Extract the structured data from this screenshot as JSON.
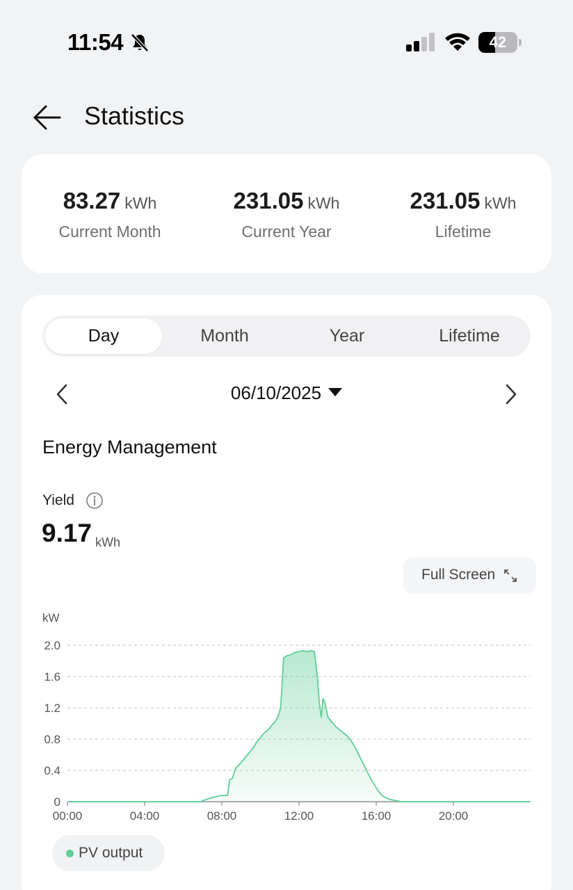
{
  "status_bar": {
    "time": "11:54",
    "battery": "42",
    "battery_level": 0.42,
    "icons": [
      "bell-slash-icon",
      "cellular-signal-icon",
      "wifi-icon",
      "battery-icon"
    ]
  },
  "header": {
    "title": "Statistics",
    "back_icon": "arrow-left-icon"
  },
  "summary": [
    {
      "value": "83.27",
      "unit": "kWh",
      "label": "Current Month"
    },
    {
      "value": "231.05",
      "unit": "kWh",
      "label": "Current Year"
    },
    {
      "value": "231.05",
      "unit": "kWh",
      "label": "Lifetime"
    }
  ],
  "tabs": [
    {
      "label": "Day",
      "active": true
    },
    {
      "label": "Month",
      "active": false
    },
    {
      "label": "Year",
      "active": false
    },
    {
      "label": "Lifetime",
      "active": false
    }
  ],
  "date_nav": {
    "date": "06/10/2025",
    "prev_icon": "chevron-left-icon",
    "next_icon": "chevron-right-icon",
    "caret_icon": "caret-down-icon"
  },
  "energy": {
    "section_title": "Energy Management",
    "yield_label": "Yield",
    "yield_value": "9.17",
    "yield_unit": "kWh",
    "info_icon": "info-icon",
    "fullscreen_label": "Full Screen",
    "fullscreen_icon": "expand-icon"
  },
  "chart_data": {
    "type": "area",
    "ylabel": "kW",
    "ylim": [
      0,
      2.0
    ],
    "yticks": [
      "0",
      "0.4",
      "0.8",
      "1.2",
      "1.6",
      "2.0"
    ],
    "xticks": [
      "00:00",
      "04:00",
      "08:00",
      "12:00",
      "16:00",
      "20:00"
    ],
    "x_range_hours": [
      0,
      24
    ],
    "grid": true,
    "color": "#5fce97",
    "series": [
      {
        "name": "PV output",
        "x": [
          0,
          6.9,
          7.2,
          7.6,
          8.0,
          8.3,
          8.4,
          8.55,
          8.7,
          8.85,
          9.0,
          9.2,
          9.4,
          9.6,
          9.8,
          10.0,
          10.2,
          10.4,
          10.6,
          10.75,
          10.9,
          11.05,
          11.2,
          11.4,
          11.6,
          11.8,
          12.0,
          12.2,
          12.4,
          12.6,
          12.8,
          12.95,
          13.05,
          13.15,
          13.25,
          13.35,
          13.5,
          13.7,
          13.9,
          14.1,
          14.3,
          14.5,
          14.7,
          14.9,
          15.1,
          15.3,
          15.5,
          15.7,
          15.9,
          16.1,
          16.3,
          16.5,
          16.7,
          16.9,
          17.1,
          17.3,
          17.5,
          17.7,
          17.9,
          18.1,
          18.4,
          24
        ],
        "values": [
          0,
          0,
          0.03,
          0.06,
          0.08,
          0.08,
          0.28,
          0.3,
          0.42,
          0.46,
          0.5,
          0.56,
          0.62,
          0.68,
          0.76,
          0.82,
          0.88,
          0.92,
          0.98,
          1.02,
          1.08,
          1.2,
          1.84,
          1.87,
          1.88,
          1.91,
          1.92,
          1.93,
          1.92,
          1.93,
          1.92,
          1.6,
          1.28,
          1.08,
          1.32,
          1.26,
          1.08,
          1.02,
          0.96,
          0.92,
          0.88,
          0.84,
          0.78,
          0.7,
          0.6,
          0.5,
          0.4,
          0.3,
          0.22,
          0.14,
          0.08,
          0.05,
          0.03,
          0.02,
          0.01,
          0,
          0,
          0,
          0,
          0,
          0,
          0
        ]
      }
    ]
  }
}
